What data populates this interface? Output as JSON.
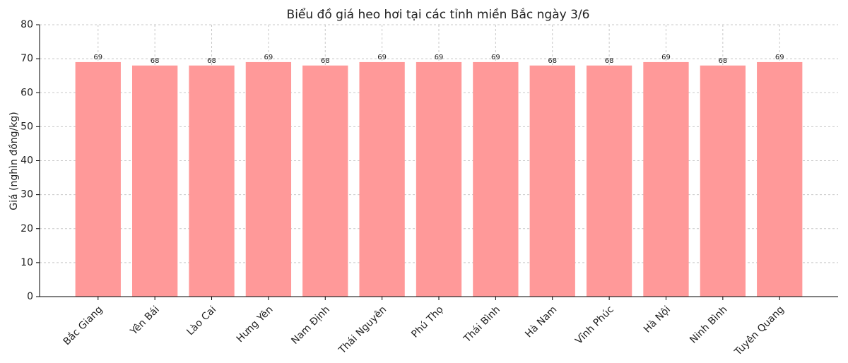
{
  "chart_data": {
    "type": "bar",
    "title": "Biểu đồ giá heo hơi tại các tỉnh miền Bắc ngày 3/6",
    "y_label": "Giá (nghìn đồng/kg)",
    "categories": [
      "Bắc Giang",
      "Yên Bái",
      "Lào Cai",
      "Hưng Yên",
      "Nam Định",
      "Thái Nguyên",
      "Phú Thọ",
      "Thái Bình",
      "Hà Nam",
      "Vĩnh Phúc",
      "Hà Nội",
      "Ninh Bình",
      "Tuyên Quang"
    ],
    "values": [
      69,
      68,
      68,
      69,
      68,
      69,
      69,
      69,
      68,
      68,
      69,
      68,
      69
    ],
    "color": "#ff9999",
    "ylim": [
      0,
      80
    ],
    "yticks": [
      0,
      10,
      20,
      30,
      40,
      50,
      60,
      70,
      80
    ],
    "grid": true
  }
}
